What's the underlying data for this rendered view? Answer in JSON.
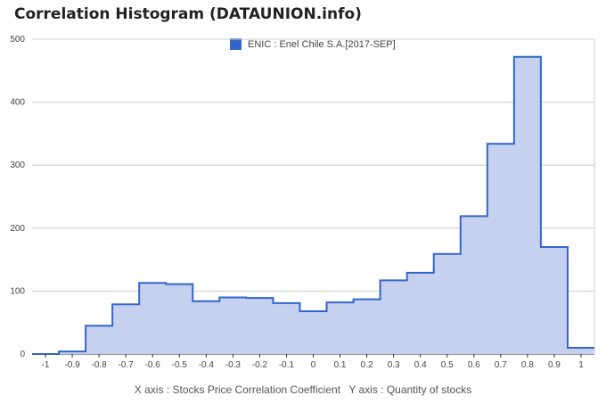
{
  "chart_data": {
    "type": "area",
    "step": true,
    "title": "Correlation Histogram (DATAUNION.info)",
    "legend": {
      "position": "top",
      "entries": [
        "ENIC : Enel Chile S.A.[2017-SEP]"
      ]
    },
    "x_caption": "X axis : Stocks Price Correlation Coefficient",
    "y_caption": "Y axis : Quantity of stocks",
    "xlim": [
      -1.05,
      1.05
    ],
    "ylim": [
      0,
      500
    ],
    "x_ticks": [
      -1,
      -0.9,
      -0.8,
      -0.7,
      -0.6,
      -0.5,
      -0.4,
      -0.3,
      -0.2,
      -0.1,
      0,
      0.1,
      0.2,
      0.3,
      0.4,
      0.5,
      0.6,
      0.7,
      0.8,
      0.9,
      1
    ],
    "y_ticks": [
      0,
      100,
      200,
      300,
      400,
      500
    ],
    "grid": true,
    "series": [
      {
        "name": "ENIC : Enel Chile S.A.[2017-SEP]",
        "x": [
          -1,
          -0.9,
          -0.8,
          -0.7,
          -0.6,
          -0.5,
          -0.4,
          -0.3,
          -0.2,
          -0.1,
          0,
          0.1,
          0.2,
          0.3,
          0.4,
          0.5,
          0.6,
          0.7,
          0.8,
          0.9,
          1
        ],
        "values": [
          0,
          4,
          45,
          79,
          113,
          111,
          84,
          90,
          89,
          81,
          68,
          82,
          87,
          117,
          129,
          159,
          219,
          334,
          472,
          170,
          10
        ],
        "color": "#3366cc",
        "fill": "#c5d1ee"
      }
    ]
  }
}
